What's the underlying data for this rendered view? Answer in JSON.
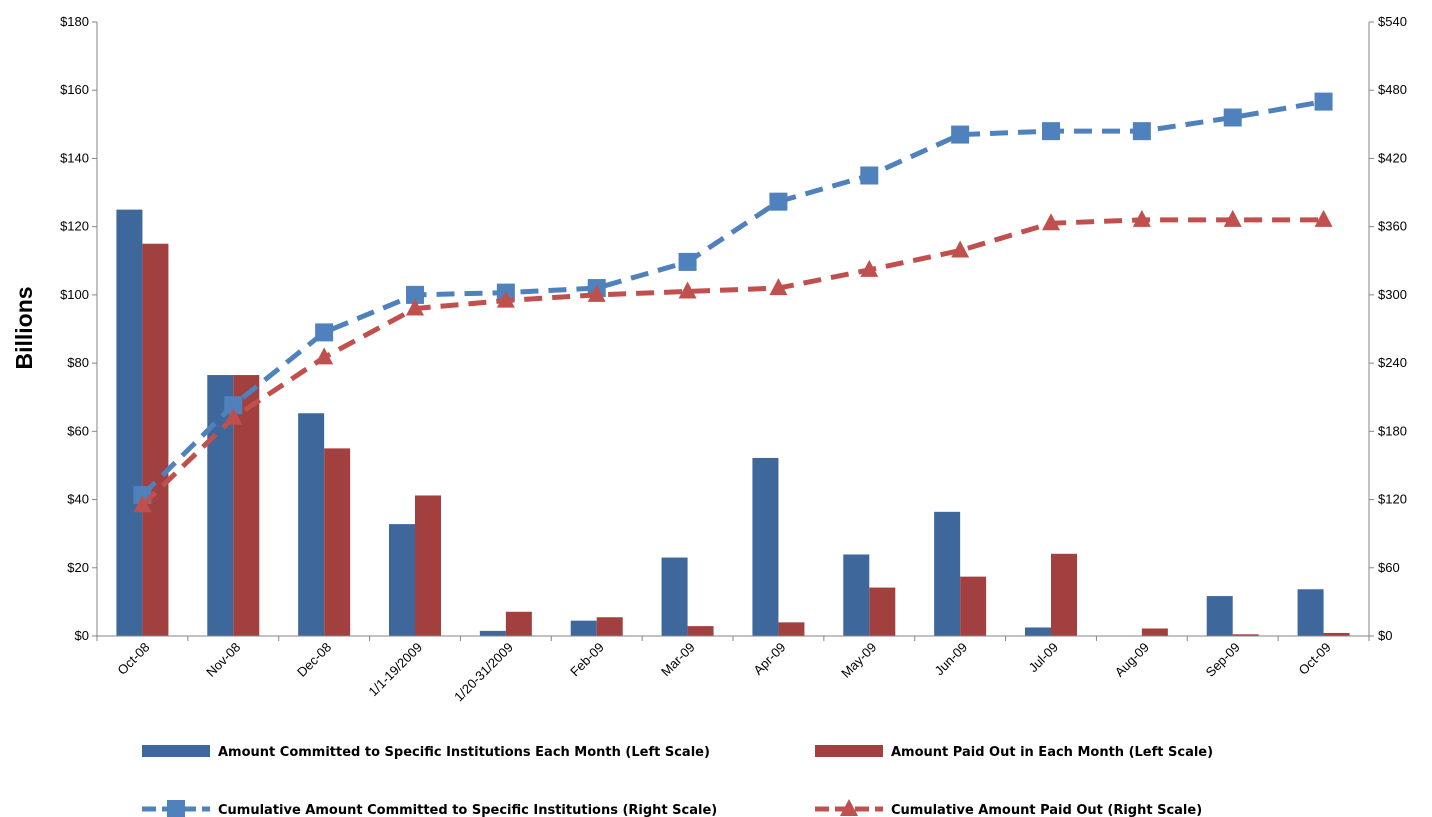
{
  "chart_data": {
    "type": "bar",
    "categories": [
      "Oct-08",
      "Nov-08",
      "Dec-08",
      "1/1-19/2009",
      "1/20-31/2009",
      "Feb-09",
      "Mar-09",
      "Apr-09",
      "May-09",
      "Jun-09",
      "Jul-09",
      "Aug-09",
      "Sep-09",
      "Oct-09"
    ],
    "series": [
      {
        "name": "Amount Committed to Specific Institutions Each Month (Left Scale)",
        "kind": "bar",
        "axis": "left",
        "color": "#3E679C",
        "values": [
          125,
          76.5,
          65.3,
          32.8,
          1.5,
          4.5,
          23,
          52.2,
          23.9,
          36.4,
          2.5,
          0,
          11.7,
          13.7
        ]
      },
      {
        "name": "Amount Paid Out in Each Month (Left Scale)",
        "kind": "bar",
        "axis": "left",
        "color": "#A24040",
        "values": [
          115,
          76.5,
          55,
          41.2,
          7.1,
          5.5,
          2.9,
          4.0,
          14.2,
          17.4,
          24.1,
          2.2,
          0.5,
          0.9
        ]
      },
      {
        "name": "Cumulative Amount Committed to Specific Institutions (Right Scale)",
        "kind": "line",
        "axis": "right",
        "marker": "square",
        "color": "#4F81BD",
        "values": [
          124,
          203,
          267,
          300,
          302,
          306,
          329,
          382,
          405,
          441,
          444,
          444,
          456,
          470
        ]
      },
      {
        "name": "Cumulative Amount Paid Out (Right Scale)",
        "kind": "line",
        "axis": "right",
        "marker": "triangle",
        "color": "#C0504D",
        "values": [
          115,
          192,
          245,
          288,
          295,
          300,
          303,
          306,
          322,
          339,
          363,
          366,
          366,
          366
        ]
      }
    ],
    "ylabel": "Billions",
    "ylim": [
      0,
      180
    ],
    "y2lim": [
      0,
      540
    ],
    "yticks": [
      "$0",
      "$20",
      "$40",
      "$60",
      "$80",
      "$100",
      "$120",
      "$140",
      "$160",
      "$180"
    ],
    "y2ticks": [
      "$0",
      "$60",
      "$120",
      "$180",
      "$240",
      "$300",
      "$360",
      "$420",
      "$480",
      "$540"
    ],
    "grid": false,
    "legend_position": "bottom"
  }
}
